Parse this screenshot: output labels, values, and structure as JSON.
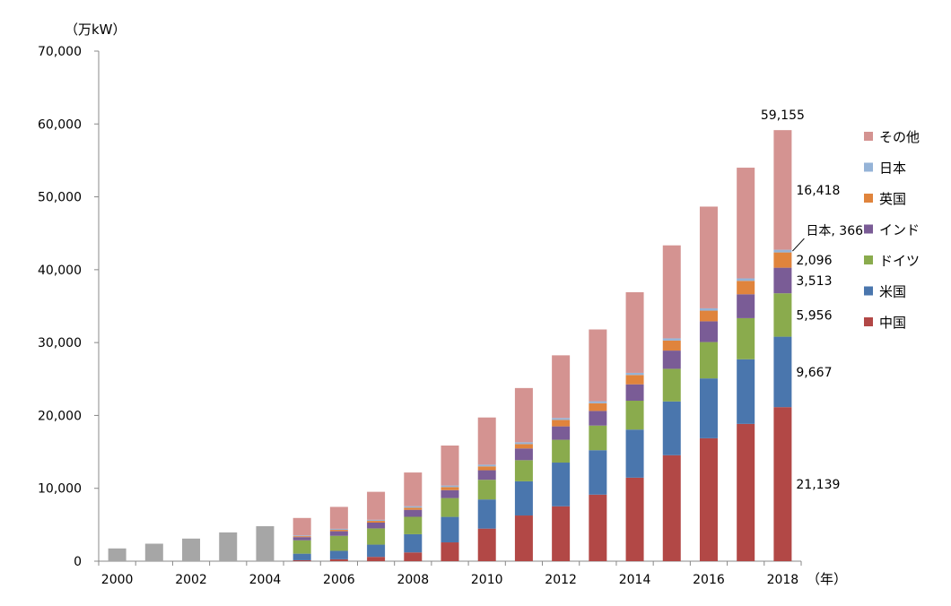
{
  "chart_data": {
    "type": "bar",
    "stacked": true,
    "unit_label": "（万kW）",
    "x_unit_label": "（年）",
    "ylim": [
      0,
      70000
    ],
    "y_ticks": [
      0,
      10000,
      20000,
      30000,
      40000,
      50000,
      60000,
      70000
    ],
    "y_tick_labels": [
      "0",
      "10,000",
      "20,000",
      "30,000",
      "40,000",
      "50,000",
      "60,000",
      "70,000"
    ],
    "categories": [
      "2000",
      "2001",
      "2002",
      "2003",
      "2004",
      "2005",
      "2006",
      "2007",
      "2008",
      "2009",
      "2010",
      "2011",
      "2012",
      "2013",
      "2014",
      "2015",
      "2016",
      "2017",
      "2018"
    ],
    "x_tick_labels": [
      "2000",
      "2002",
      "2004",
      "2006",
      "2008",
      "2010",
      "2012",
      "2014",
      "2016",
      "2018"
    ],
    "total_series": {
      "color": "#a6a6a6",
      "values": [
        1750,
        2400,
        3100,
        3950,
        4800,
        null,
        null,
        null,
        null,
        null,
        null,
        null,
        null,
        null,
        null,
        null,
        null,
        null,
        null
      ]
    },
    "series": [
      {
        "name": "中国",
        "color": "#b24846",
        "values": [
          null,
          null,
          null,
          null,
          null,
          130,
          260,
          590,
          1200,
          2580,
          4470,
          6270,
          7530,
          9130,
          11460,
          14540,
          16870,
          18840,
          21139
        ]
      },
      {
        "name": "米国",
        "color": "#4a76ad",
        "values": [
          null,
          null,
          null,
          null,
          null,
          900,
          1160,
          1680,
          2500,
          3500,
          4000,
          4690,
          6000,
          6100,
          6600,
          7380,
          8210,
          8870,
          9667
        ]
      },
      {
        "name": "ドイツ",
        "color": "#8aab4d",
        "values": [
          null,
          null,
          null,
          null,
          null,
          1840,
          2060,
          2230,
          2390,
          2580,
          2700,
          2900,
          3130,
          3380,
          3960,
          4480,
          4990,
          5640,
          5956
        ]
      },
      {
        "name": "インド",
        "color": "#7a5c96",
        "values": [
          null,
          null,
          null,
          null,
          null,
          430,
          630,
          790,
          960,
          1090,
          1310,
          1610,
          1840,
          2010,
          2250,
          2500,
          2850,
          3280,
          3513
        ]
      },
      {
        "name": "英国",
        "color": "#e0843c",
        "values": [
          null,
          null,
          null,
          null,
          null,
          130,
          190,
          240,
          300,
          420,
          530,
          600,
          890,
          1060,
          1280,
          1380,
          1460,
          1840,
          2096
        ]
      },
      {
        "name": "日本",
        "color": "#95b3d7",
        "values": [
          null,
          null,
          null,
          null,
          null,
          110,
          140,
          150,
          190,
          210,
          230,
          250,
          260,
          270,
          290,
          300,
          320,
          340,
          366
        ]
      },
      {
        "name": "その他",
        "color": "#d49391",
        "values": [
          null,
          null,
          null,
          null,
          null,
          2390,
          3010,
          3840,
          4630,
          5490,
          6480,
          7440,
          8600,
          9850,
          11070,
          12760,
          13960,
          15190,
          16418
        ]
      }
    ],
    "total_2018_label": "59,155",
    "data_labels_2018": [
      "21,139",
      "9,667",
      "5,956",
      "3,513",
      "2,096",
      "日本, 366",
      "16,418"
    ],
    "legend_order": [
      "その他",
      "日本",
      "英国",
      "インド",
      "ドイツ",
      "米国",
      "中国"
    ],
    "legend_position": "right",
    "grid": false
  }
}
